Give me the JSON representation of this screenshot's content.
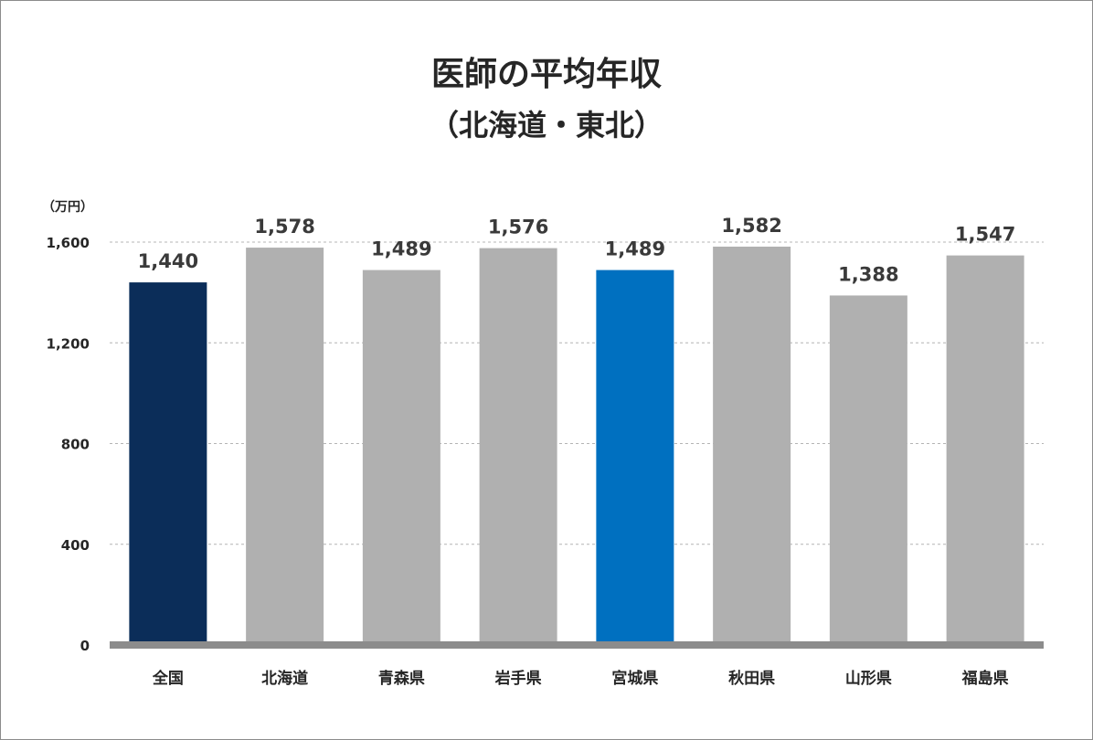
{
  "chart_data": {
    "type": "bar",
    "title": "医師の平均年収",
    "subtitle": "（北海道・東北）",
    "ylabel": "（万円）",
    "xlabel": "",
    "categories": [
      "全国",
      "北海道",
      "青森県",
      "岩手県",
      "宮城県",
      "秋田県",
      "山形県",
      "福島県"
    ],
    "values": [
      1440,
      1578,
      1489,
      1576,
      1489,
      1582,
      1388,
      1547
    ],
    "value_labels": [
      "1,440",
      "1,578",
      "1,489",
      "1,576",
      "1,489",
      "1,582",
      "1,388",
      "1,547"
    ],
    "bar_colors": [
      "#0b2d59",
      "#b0b0b0",
      "#b0b0b0",
      "#b0b0b0",
      "#0070c0",
      "#b0b0b0",
      "#b0b0b0",
      "#b0b0b0"
    ],
    "ylim": [
      0,
      1600
    ],
    "yticks": [
      0,
      400,
      800,
      1200,
      1600
    ],
    "ytick_labels": [
      "0",
      "400",
      "800",
      "1,200",
      "1,600"
    ],
    "grid": true,
    "legend": "none"
  }
}
